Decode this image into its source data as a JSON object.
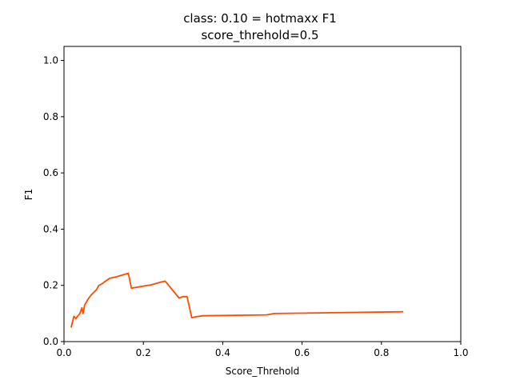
{
  "chart_data": {
    "type": "line",
    "title": "class: 0.10 = hotmaxx F1",
    "subtitle": "score_threhold=0.5",
    "xlabel": "Score_Threhold",
    "ylabel": "F1",
    "xlim": [
      0.0,
      1.0
    ],
    "ylim": [
      0.0,
      1.05
    ],
    "xticks": [
      "0.0",
      "0.2",
      "0.4",
      "0.6",
      "0.8",
      "1.0"
    ],
    "yticks": [
      "0.0",
      "0.2",
      "0.4",
      "0.6",
      "0.8",
      "1.0"
    ],
    "grid": false,
    "line_color": "#ff4a00",
    "series": [
      {
        "x": [
          0.018,
          0.025,
          0.03,
          0.034,
          0.04,
          0.045,
          0.048,
          0.052,
          0.06,
          0.068,
          0.075,
          0.082,
          0.088,
          0.095,
          0.105,
          0.115,
          0.13,
          0.15,
          0.162,
          0.17,
          0.19,
          0.22,
          0.245,
          0.255,
          0.29,
          0.3,
          0.31,
          0.322,
          0.33,
          0.35,
          0.51,
          0.53,
          0.855
        ],
        "y": [
          0.05,
          0.09,
          0.082,
          0.09,
          0.1,
          0.12,
          0.1,
          0.13,
          0.15,
          0.165,
          0.175,
          0.185,
          0.2,
          0.205,
          0.215,
          0.225,
          0.23,
          0.238,
          0.243,
          0.19,
          0.195,
          0.202,
          0.212,
          0.215,
          0.155,
          0.16,
          0.16,
          0.085,
          0.088,
          0.092,
          0.095,
          0.1,
          0.106
        ]
      }
    ]
  }
}
